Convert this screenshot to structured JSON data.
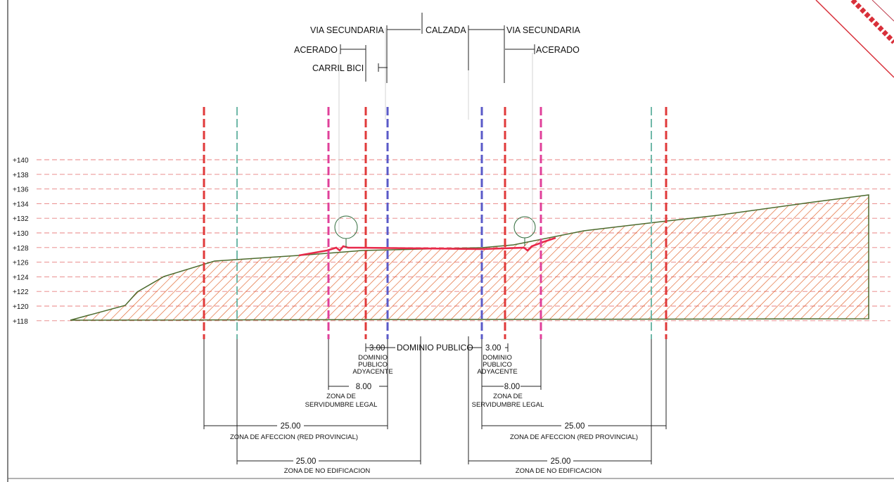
{
  "elevation_labels": [
    "+140",
    "+138",
    "+136",
    "+134",
    "+132",
    "+130",
    "+128",
    "+126",
    "+124",
    "+122",
    "+120",
    "+118"
  ],
  "top_labels": {
    "via_secundaria_left": "VIA SECUNDARIA",
    "calzada": "CALZADA",
    "via_secundaria_right": "VIA SECUNDARIA",
    "acerado_left": "ACERADO",
    "acerado_right": "ACERADO",
    "carril_bici": "CARRIL BICI"
  },
  "bottom_labels": {
    "dominio_publico": "DOMINIO PUBLICO",
    "dim_3_left": "3.00",
    "dim_3_right": "3.00",
    "adyacente_left": [
      "DOMINIO",
      "PUBLICO",
      "ADYACENTE"
    ],
    "adyacente_right": [
      "DOMINIO",
      "PUBLICO",
      "ADYACENTE"
    ],
    "dim_8_left": "8.00",
    "dim_8_right": "8.00",
    "servidumbre_left": [
      "ZONA DE",
      "SERVIDUMBRE LEGAL"
    ],
    "servidumbre_right": [
      "ZONA DE",
      "SERVIDUMBRE LEGAL"
    ],
    "dim_25_afeccion_left": "25.00",
    "dim_25_afeccion_right": "25.00",
    "afeccion_left": "ZONA DE AFECCION (RED PROVINCIAL)",
    "afeccion_right": "ZONA DE AFECCION (RED PROVINCIAL)",
    "dim_25_edif_left": "25.00",
    "dim_25_edif_right": "25.00",
    "no_edificacion_left": "ZONA DE NO EDIFICACION",
    "no_edificacion_right": "ZONA DE NO EDIFICACION"
  },
  "colors": {
    "ground_hatch": "#e0622a",
    "ground_outline": "#4d6b2e",
    "road_profile": "#e8294a",
    "red_limit": "#e0393a",
    "magenta_limit": "#e0409a",
    "blue_limit": "#5a5ac8",
    "teal_limit": "#6fb8a8",
    "grid": "#e88080"
  }
}
